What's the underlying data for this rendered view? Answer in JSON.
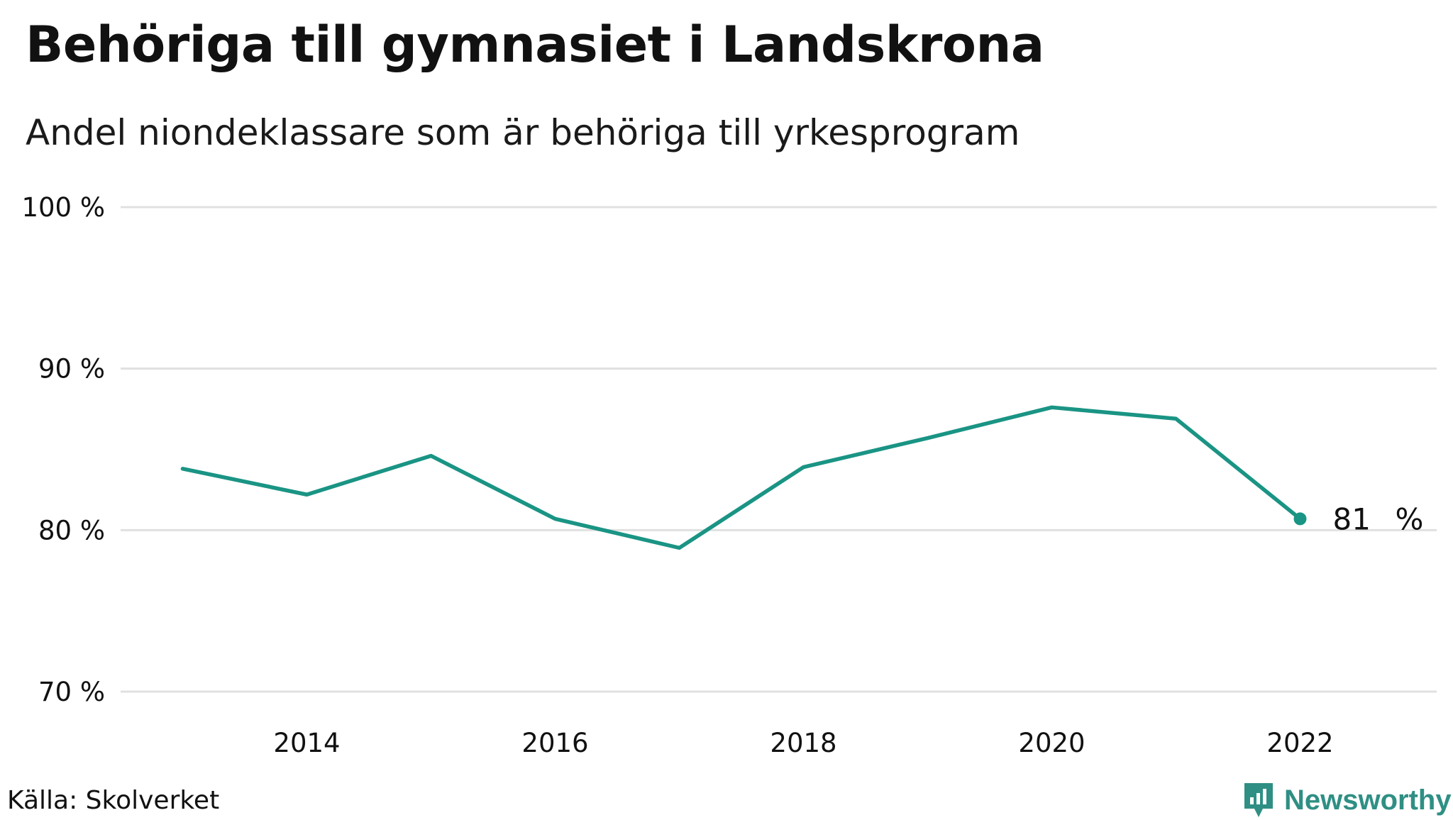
{
  "chart_data": {
    "type": "line",
    "title": "Behöriga till gymnasiet i Landskrona",
    "subtitle": "Andel niondeklassare som är behöriga till yrkesprogram",
    "source": "Källa: Skolverket",
    "brand": "Newsworthy",
    "series": [
      {
        "x": [
          2013,
          2014,
          2015,
          2016,
          2017,
          2018,
          2019,
          2020,
          2021,
          2022
        ],
        "values": [
          83.8,
          82.2,
          84.6,
          80.7,
          78.9,
          83.9,
          85.7,
          87.6,
          86.9,
          80.7
        ]
      }
    ],
    "end_label": {
      "value": "81",
      "unit": "%"
    },
    "xticks": [
      "2014",
      "2016",
      "2018",
      "2020",
      "2022"
    ],
    "xtick_values": [
      2014,
      2016,
      2018,
      2020,
      2022
    ],
    "yticks": [
      "70 %",
      "80 %",
      "90 %",
      "100 %"
    ],
    "ytick_values": [
      70,
      80,
      90,
      100
    ],
    "xlim": [
      2012.5,
      2023.1
    ],
    "ylim": [
      70,
      100
    ],
    "grid": true,
    "colors": {
      "line": "#1a9484",
      "grid": "#e0e0e0",
      "brand": "#2f8f84"
    }
  }
}
